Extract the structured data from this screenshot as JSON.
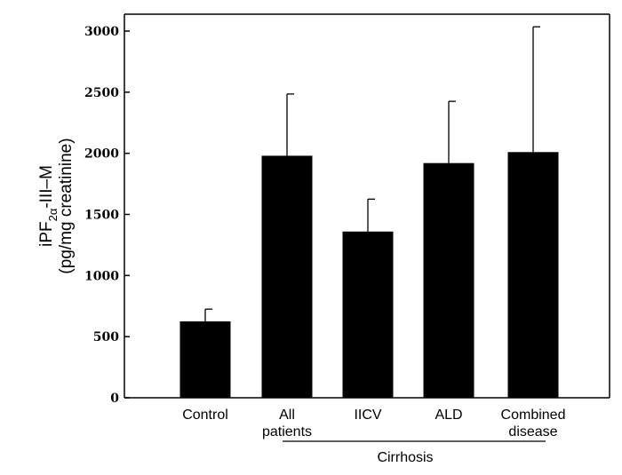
{
  "chart_data": {
    "type": "bar",
    "categories": [
      [
        "Control"
      ],
      [
        "All",
        "patients"
      ],
      [
        "IICV"
      ],
      [
        "ALD"
      ],
      [
        "Combined",
        "disease"
      ]
    ],
    "values": [
      625,
      1980,
      1360,
      1920,
      2010
    ],
    "errors": [
      100,
      505,
      265,
      505,
      1025
    ],
    "ylabel_main": "iPF",
    "ylabel_sub": "2α",
    "ylabel_rest": "-III–M",
    "ylabel_line2": "(pg/mg creatinine)",
    "yticks": [
      0,
      500,
      1000,
      1500,
      2000,
      2500,
      3000
    ],
    "ylim": [
      0,
      3000
    ],
    "group_label": "Cirrhosis",
    "bar_color": "#000000",
    "grid": false
  }
}
